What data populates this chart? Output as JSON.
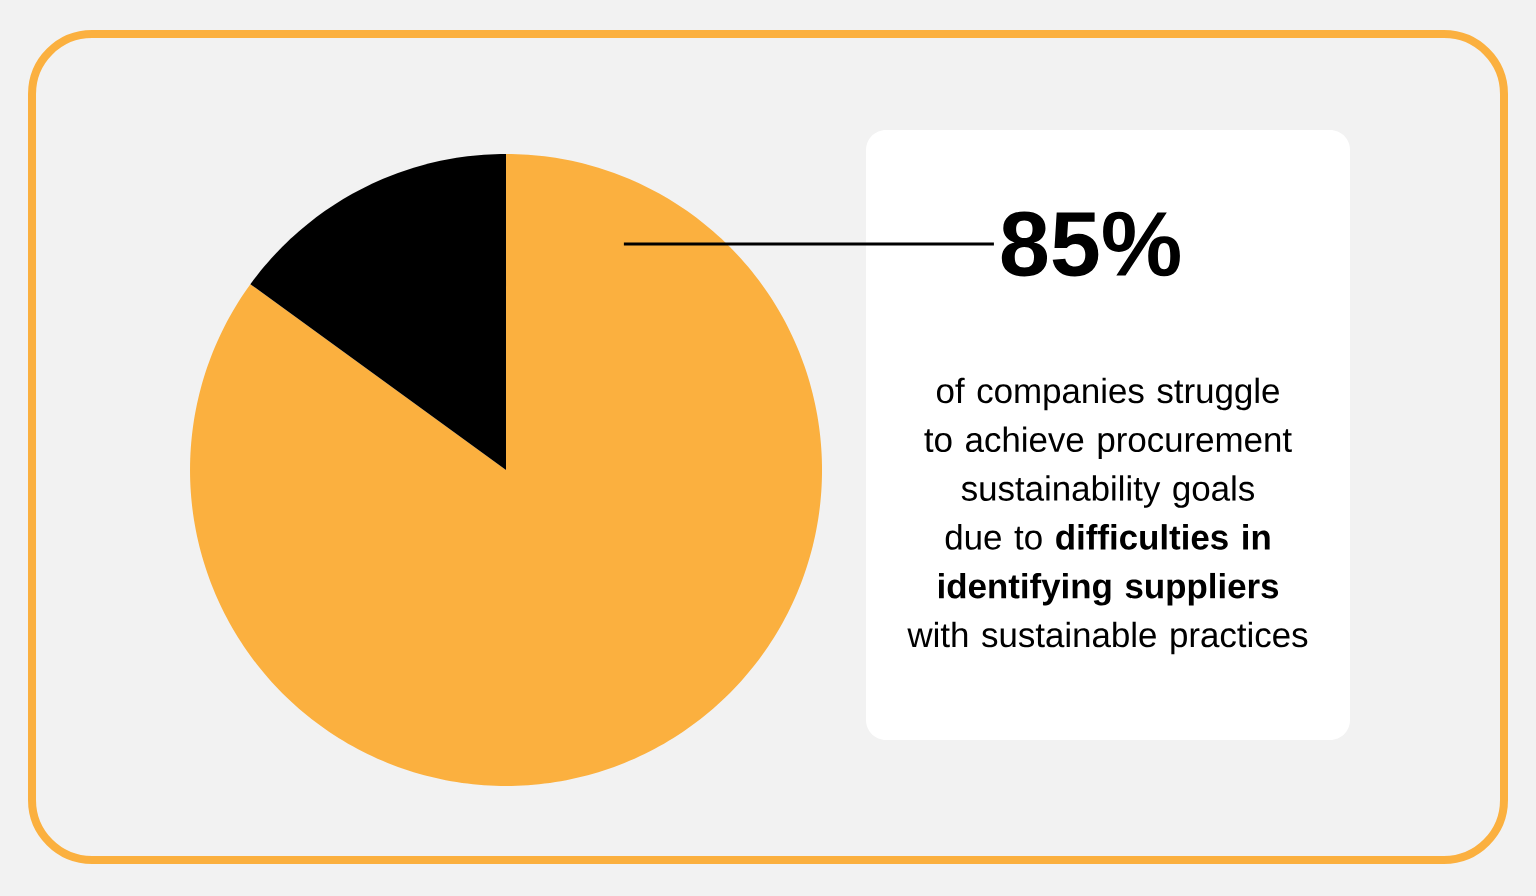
{
  "chart_data": {
    "type": "pie",
    "categories": [
      null,
      null
    ],
    "values": [
      85,
      15
    ],
    "colors": [
      "#fbb03f",
      "#000000"
    ],
    "value_labels": [
      "85%",
      null
    ],
    "annotations": [
      "of companies struggle to achieve procurement sustainability goals due to **difficulties in identifying suppliers** with sustainable practices"
    ]
  }
}
